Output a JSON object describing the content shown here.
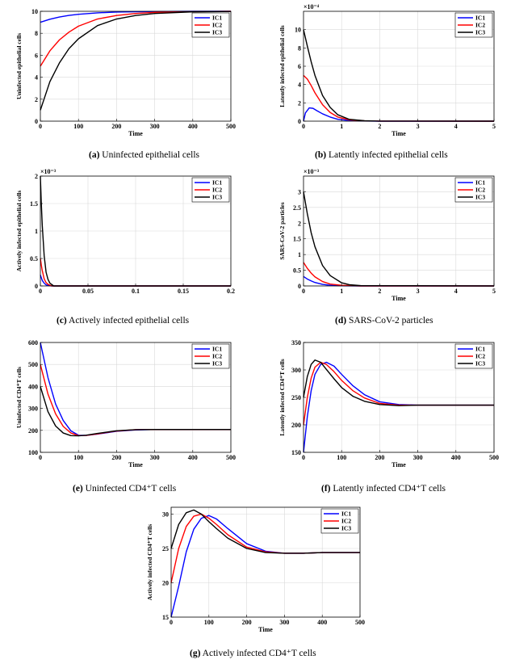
{
  "chart_data": [
    {
      "id": "a",
      "type": "line",
      "caption_tag": "(a)",
      "caption_text": "Uninfected epithelial cells",
      "xlabel": "Time",
      "ylabel": "Uninfected epithelial cells",
      "xlim": [
        0,
        500
      ],
      "ylim": [
        0,
        10
      ],
      "xticks": [
        0,
        100,
        200,
        300,
        400,
        500
      ],
      "yticks": [
        0,
        2,
        4,
        6,
        8,
        10
      ],
      "exponent": "",
      "legend": [
        "IC1",
        "IC2",
        "IC3"
      ],
      "series": [
        {
          "name": "IC1",
          "color": "#0000ff",
          "x": [
            0,
            25,
            50,
            75,
            100,
            150,
            200,
            250,
            300,
            400,
            500
          ],
          "y": [
            9,
            9.28,
            9.48,
            9.63,
            9.73,
            9.86,
            9.93,
            9.96,
            9.98,
            10,
            10
          ]
        },
        {
          "name": "IC2",
          "color": "#ff0000",
          "x": [
            0,
            25,
            50,
            75,
            100,
            150,
            200,
            250,
            300,
            400,
            500
          ],
          "y": [
            5,
            6.4,
            7.4,
            8.1,
            8.65,
            9.3,
            9.62,
            9.8,
            9.9,
            9.97,
            10
          ]
        },
        {
          "name": "IC3",
          "color": "#000000",
          "x": [
            0,
            25,
            50,
            75,
            100,
            150,
            200,
            250,
            300,
            400,
            500
          ],
          "y": [
            1,
            3.6,
            5.3,
            6.6,
            7.5,
            8.7,
            9.3,
            9.62,
            9.8,
            9.95,
            9.99
          ]
        }
      ]
    },
    {
      "id": "b",
      "type": "line",
      "caption_tag": "(b)",
      "caption_text": "Latently infected epithelial cells",
      "xlabel": "Time",
      "ylabel": "Latently infected epithelial cells",
      "xlim": [
        0,
        5
      ],
      "ylim": [
        0,
        12
      ],
      "xticks": [
        0,
        1,
        2,
        3,
        4,
        5
      ],
      "yticks": [
        0,
        2,
        4,
        6,
        8,
        10
      ],
      "exponent": "×10⁻⁴",
      "legend": [
        "IC1",
        "IC2",
        "IC3"
      ],
      "series": [
        {
          "name": "IC1",
          "color": "#0000ff",
          "x": [
            0,
            0.05,
            0.15,
            0.25,
            0.35,
            0.5,
            0.7,
            0.9,
            1.2,
            1.6,
            2,
            5
          ],
          "y": [
            0,
            0.9,
            1.45,
            1.4,
            1.15,
            0.8,
            0.45,
            0.2,
            0.07,
            0.02,
            0,
            0
          ]
        },
        {
          "name": "IC2",
          "color": "#ff0000",
          "x": [
            0,
            0.1,
            0.2,
            0.3,
            0.5,
            0.7,
            0.9,
            1.2,
            1.6,
            2,
            5
          ],
          "y": [
            5,
            4.6,
            3.9,
            3.1,
            1.8,
            0.95,
            0.45,
            0.15,
            0.04,
            0.01,
            0
          ]
        },
        {
          "name": "IC3",
          "color": "#000000",
          "x": [
            0,
            0.1,
            0.2,
            0.3,
            0.5,
            0.7,
            0.9,
            1.2,
            1.6,
            2,
            5
          ],
          "y": [
            10,
            8.2,
            6.5,
            5,
            2.8,
            1.5,
            0.7,
            0.2,
            0.05,
            0.01,
            0
          ]
        }
      ]
    },
    {
      "id": "c",
      "type": "line",
      "caption_tag": "(c)",
      "caption_text": "Actively infected epithelial cells",
      "xlabel": "",
      "ylabel": "Actively infected epithelial cells",
      "xlim": [
        0,
        0.2
      ],
      "ylim": [
        0,
        2
      ],
      "xticks": [
        0,
        0.05,
        0.1,
        0.15,
        0.2
      ],
      "yticks": [
        0,
        0.5,
        1,
        1.5,
        2
      ],
      "exponent": "×10⁻³",
      "legend": [
        "IC1",
        "IC2",
        "IC3"
      ],
      "series": [
        {
          "name": "IC1",
          "color": "#0000ff",
          "x": [
            0,
            0.001,
            0.002,
            0.004,
            0.006,
            0.008,
            0.012,
            0.2
          ],
          "y": [
            0.2,
            0.15,
            0.1,
            0.05,
            0.02,
            0.01,
            0,
            0
          ]
        },
        {
          "name": "IC2",
          "color": "#ff0000",
          "x": [
            0,
            0.001,
            0.002,
            0.004,
            0.006,
            0.008,
            0.012,
            0.2
          ],
          "y": [
            0.5,
            0.38,
            0.28,
            0.13,
            0.06,
            0.03,
            0,
            0
          ]
        },
        {
          "name": "IC3",
          "color": "#000000",
          "x": [
            0,
            0.001,
            0.002,
            0.004,
            0.006,
            0.008,
            0.01,
            0.014,
            0.2
          ],
          "y": [
            2,
            1.5,
            1.1,
            0.55,
            0.25,
            0.12,
            0.05,
            0,
            0
          ]
        }
      ]
    },
    {
      "id": "d",
      "type": "line",
      "caption_tag": "(d)",
      "caption_text": "SARS-CoV-2 particles",
      "xlabel": "Time",
      "ylabel": "SARS-CoV-2 particles",
      "xlim": [
        0,
        5
      ],
      "ylim": [
        0,
        3.5
      ],
      "xticks": [
        0,
        1,
        2,
        3,
        4,
        5
      ],
      "yticks": [
        0,
        0.5,
        1,
        1.5,
        2,
        2.5,
        3
      ],
      "exponent": "×10⁻³",
      "legend": [
        "IC1",
        "IC2",
        "IC3"
      ],
      "series": [
        {
          "name": "IC1",
          "color": "#0000ff",
          "x": [
            0,
            0.1,
            0.2,
            0.3,
            0.5,
            0.7,
            1,
            1.5,
            5
          ],
          "y": [
            0.3,
            0.22,
            0.16,
            0.11,
            0.05,
            0.02,
            0.005,
            0,
            0
          ]
        },
        {
          "name": "IC2",
          "color": "#ff0000",
          "x": [
            0,
            0.1,
            0.2,
            0.3,
            0.5,
            0.7,
            1,
            1.5,
            5
          ],
          "y": [
            0.75,
            0.56,
            0.41,
            0.29,
            0.14,
            0.06,
            0.02,
            0,
            0
          ]
        },
        {
          "name": "IC3",
          "color": "#000000",
          "x": [
            0,
            0.1,
            0.2,
            0.3,
            0.5,
            0.7,
            1,
            1.2,
            1.5,
            5
          ],
          "y": [
            3,
            2.3,
            1.7,
            1.25,
            0.65,
            0.33,
            0.1,
            0.04,
            0.01,
            0
          ]
        }
      ]
    },
    {
      "id": "e",
      "type": "line",
      "caption_tag": "(e)",
      "caption_text": "Uninfected CD4⁺T cells",
      "xlabel": "Time",
      "ylabel": "Uninfected CD4⁺T cells",
      "xlim": [
        0,
        500
      ],
      "ylim": [
        100,
        600
      ],
      "xticks": [
        0,
        100,
        200,
        300,
        400,
        500
      ],
      "yticks": [
        100,
        200,
        300,
        400,
        500,
        600
      ],
      "exponent": "",
      "legend": [
        "IC1",
        "IC2",
        "IC3"
      ],
      "series": [
        {
          "name": "IC1",
          "color": "#0000ff",
          "x": [
            0,
            20,
            40,
            60,
            80,
            100,
            120,
            150,
            200,
            250,
            300,
            400,
            500
          ],
          "y": [
            600,
            440,
            320,
            245,
            198,
            178,
            177,
            183,
            196,
            202,
            204,
            204,
            204
          ]
        },
        {
          "name": "IC2",
          "color": "#ff0000",
          "x": [
            0,
            20,
            40,
            60,
            80,
            100,
            120,
            150,
            200,
            250,
            300,
            400,
            500
          ],
          "y": [
            500,
            365,
            275,
            218,
            188,
            176,
            177,
            184,
            197,
            203,
            204,
            204,
            204
          ]
        },
        {
          "name": "IC3",
          "color": "#000000",
          "x": [
            0,
            20,
            40,
            60,
            80,
            100,
            120,
            150,
            200,
            250,
            300,
            400,
            500
          ],
          "y": [
            400,
            285,
            220,
            188,
            176,
            175,
            178,
            186,
            198,
            203,
            204,
            204,
            204
          ]
        }
      ]
    },
    {
      "id": "f",
      "type": "line",
      "caption_tag": "(f)",
      "caption_text": "Latently infected CD4⁺T cells",
      "xlabel": "Time",
      "ylabel": "Latently infected CD4⁺T cells",
      "xlim": [
        0,
        500
      ],
      "ylim": [
        150,
        350
      ],
      "xticks": [
        0,
        100,
        200,
        300,
        400,
        500
      ],
      "yticks": [
        150,
        200,
        250,
        300,
        350
      ],
      "exponent": "",
      "legend": [
        "IC1",
        "IC2",
        "IC3"
      ],
      "series": [
        {
          "name": "IC1",
          "color": "#0000ff",
          "x": [
            0,
            10,
            20,
            30,
            45,
            60,
            80,
            100,
            130,
            160,
            200,
            250,
            300,
            400,
            500
          ],
          "y": [
            150,
            215,
            262,
            292,
            310,
            314,
            307,
            292,
            271,
            255,
            242,
            237,
            236,
            236,
            236
          ]
        },
        {
          "name": "IC2",
          "color": "#ff0000",
          "x": [
            0,
            10,
            20,
            30,
            45,
            60,
            80,
            100,
            130,
            160,
            200,
            250,
            300,
            400,
            500
          ],
          "y": [
            200,
            250,
            285,
            305,
            314,
            310,
            297,
            281,
            262,
            249,
            239,
            236,
            236,
            236,
            236
          ]
        },
        {
          "name": "IC3",
          "color": "#000000",
          "x": [
            0,
            10,
            20,
            30,
            45,
            60,
            80,
            100,
            130,
            160,
            200,
            250,
            300,
            400,
            500
          ],
          "y": [
            250,
            288,
            310,
            318,
            314,
            301,
            284,
            268,
            252,
            243,
            237,
            235,
            236,
            236,
            236
          ]
        }
      ]
    },
    {
      "id": "g",
      "type": "line",
      "caption_tag": "(g)",
      "caption_text": "Actively infected CD4⁺T cells",
      "xlabel": "Time",
      "ylabel": "Actively infected CD4⁺T cells",
      "xlim": [
        0,
        500
      ],
      "ylim": [
        15,
        31
      ],
      "xticks": [
        0,
        100,
        200,
        300,
        400,
        500
      ],
      "yticks": [
        15,
        20,
        25,
        30
      ],
      "exponent": "",
      "legend": [
        "IC1",
        "IC2",
        "IC3"
      ],
      "series": [
        {
          "name": "IC1",
          "color": "#0000ff",
          "x": [
            0,
            20,
            40,
            60,
            80,
            100,
            120,
            150,
            200,
            250,
            300,
            350,
            400,
            500
          ],
          "y": [
            15,
            19.5,
            24.5,
            27.8,
            29.4,
            29.8,
            29.3,
            27.9,
            25.7,
            24.6,
            24.3,
            24.3,
            24.4,
            24.4
          ]
        },
        {
          "name": "IC2",
          "color": "#ff0000",
          "x": [
            0,
            20,
            40,
            60,
            80,
            100,
            120,
            150,
            200,
            250,
            300,
            350,
            400,
            500
          ],
          "y": [
            20,
            25,
            28.2,
            29.7,
            30,
            29.4,
            28.5,
            27,
            25.2,
            24.5,
            24.3,
            24.3,
            24.4,
            24.4
          ]
        },
        {
          "name": "IC3",
          "color": "#000000",
          "x": [
            0,
            20,
            40,
            60,
            80,
            100,
            120,
            150,
            200,
            250,
            300,
            350,
            400,
            500
          ],
          "y": [
            25,
            28.5,
            30.2,
            30.6,
            30,
            28.9,
            27.9,
            26.5,
            25,
            24.4,
            24.3,
            24.3,
            24.4,
            24.4
          ]
        }
      ]
    }
  ]
}
